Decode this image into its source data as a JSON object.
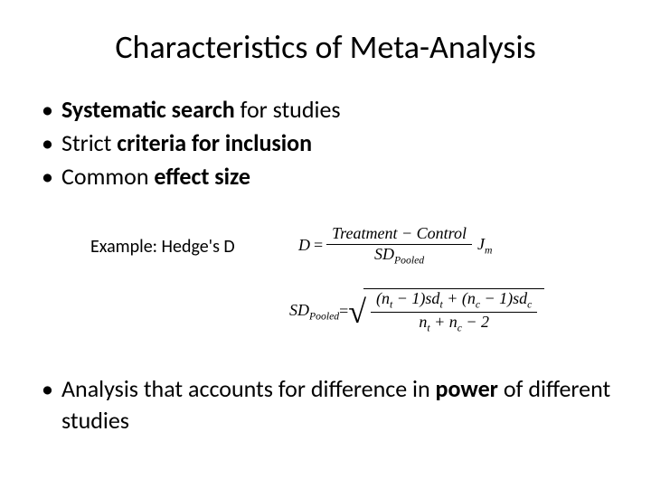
{
  "title": "Characteristics of Meta-Analysis",
  "bullets": {
    "b1_bold": "Systematic search",
    "b1_rest": " for studies",
    "b2_pre": "Strict ",
    "b2_bold": "criteria for inclusion",
    "b3_pre": "Common ",
    "b3_bold": "effect size",
    "b4_pre": "Analysis that accounts for difference in ",
    "b4_bold": "power",
    "b4_rest": " of different studies"
  },
  "example_label": "Example: Hedge's D",
  "formula1": {
    "lhs": "D",
    "eq": "=",
    "num": "Treatment − Control",
    "den_base": "SD",
    "den_sub": "Pooled",
    "suffix_base": "J",
    "suffix_sub": "m"
  },
  "formula2": {
    "lhs_base": "SD",
    "lhs_sub": "Pooled",
    "eq": "=",
    "num_parts": {
      "p1": "(n",
      "s1": "t",
      "p2": " − 1)sd",
      "s2": "t",
      "p3": " + (n",
      "s3": "c",
      "p4": " − 1)sd",
      "s4": "c"
    },
    "den_parts": {
      "p1": "n",
      "s1": "t",
      "p2": " + n",
      "s2": "c",
      "p3": " − 2"
    }
  },
  "colors": {
    "text": "#000000",
    "background": "#ffffff"
  },
  "fonts": {
    "title_size": 36,
    "bullet_size": 26,
    "example_size": 20,
    "formula_size": 18
  }
}
